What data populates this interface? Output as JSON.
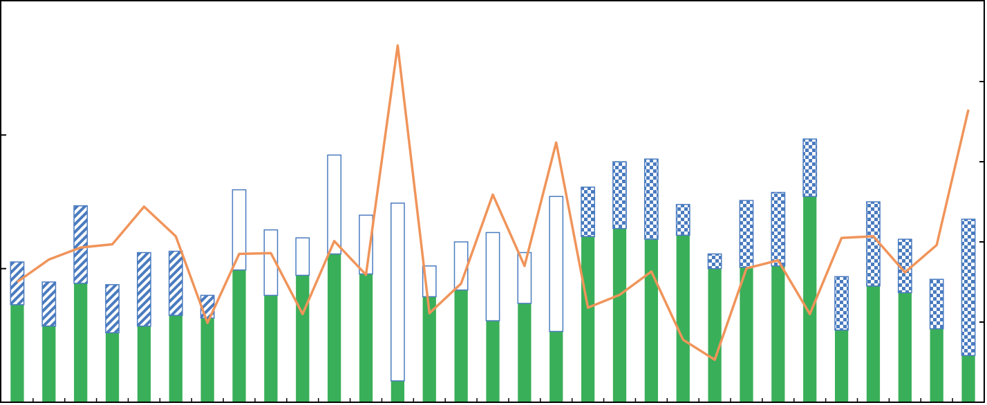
{
  "chart_data": {
    "type": "bar",
    "categories": [
      null,
      null,
      null,
      null,
      null,
      null,
      null,
      null,
      null,
      null,
      null,
      null,
      null,
      null,
      null,
      null,
      null,
      null,
      null,
      null,
      null,
      null,
      null,
      null,
      null,
      null,
      null,
      null,
      null,
      null,
      null
    ],
    "stacked": true,
    "ylim": [
      0,
      3
    ],
    "yticks": [
      0,
      1,
      2
    ],
    "y2lim": [
      0,
      5
    ],
    "y2ticks": [
      0,
      1,
      2,
      3,
      4
    ],
    "grid": false,
    "series": [
      {
        "type": "bar",
        "color": "#3aaf59",
        "pattern": "solid",
        "values": [
          0.73,
          0.57,
          0.89,
          0.52,
          0.57,
          0.65,
          0.63,
          0.99,
          0.8,
          0.95,
          1.11,
          0.96,
          0.16,
          0.79,
          0.84,
          0.61,
          0.74,
          0.53,
          1.24,
          1.3,
          1.22,
          1.25,
          1.0,
          1.01,
          1.02,
          1.54,
          0.54,
          0.87,
          0.82,
          0.55,
          0.35
        ]
      },
      {
        "type": "bar",
        "color": "#4a7bbf",
        "pattern": "hatch",
        "values": [
          0.32,
          0.33,
          0.58,
          0.36,
          0.55,
          0.48,
          0.17,
          null,
          null,
          null,
          null,
          null,
          null,
          null,
          null,
          null,
          null,
          null,
          null,
          null,
          null,
          null,
          null,
          null,
          null,
          null,
          null,
          null,
          null,
          null,
          null
        ]
      },
      {
        "type": "bar",
        "color": "#4a7bbf",
        "pattern": "outline",
        "values": [
          null,
          null,
          null,
          null,
          null,
          null,
          null,
          0.6,
          0.49,
          0.28,
          0.74,
          0.44,
          1.33,
          0.23,
          0.36,
          0.66,
          0.38,
          1.01,
          null,
          null,
          null,
          null,
          null,
          null,
          null,
          null,
          null,
          null,
          null,
          null,
          null
        ]
      },
      {
        "type": "bar",
        "color": "#4a7bbf",
        "pattern": "checker",
        "values": [
          null,
          null,
          null,
          null,
          null,
          null,
          null,
          null,
          null,
          null,
          null,
          null,
          null,
          null,
          null,
          null,
          null,
          null,
          0.37,
          0.5,
          0.6,
          0.23,
          0.11,
          0.5,
          0.55,
          0.43,
          0.4,
          0.63,
          0.4,
          0.37,
          1.02
        ]
      },
      {
        "type": "line",
        "axis": "y2",
        "color": "#f0945a",
        "values": [
          1.5,
          1.78,
          1.93,
          1.97,
          2.44,
          2.07,
          0.99,
          1.85,
          1.86,
          1.1,
          2.01,
          1.59,
          4.45,
          1.11,
          1.48,
          2.59,
          1.7,
          3.24,
          1.18,
          1.34,
          1.63,
          0.78,
          0.53,
          1.67,
          1.77,
          1.1,
          2.05,
          2.07,
          1.62,
          1.96,
          3.65
        ]
      }
    ]
  }
}
